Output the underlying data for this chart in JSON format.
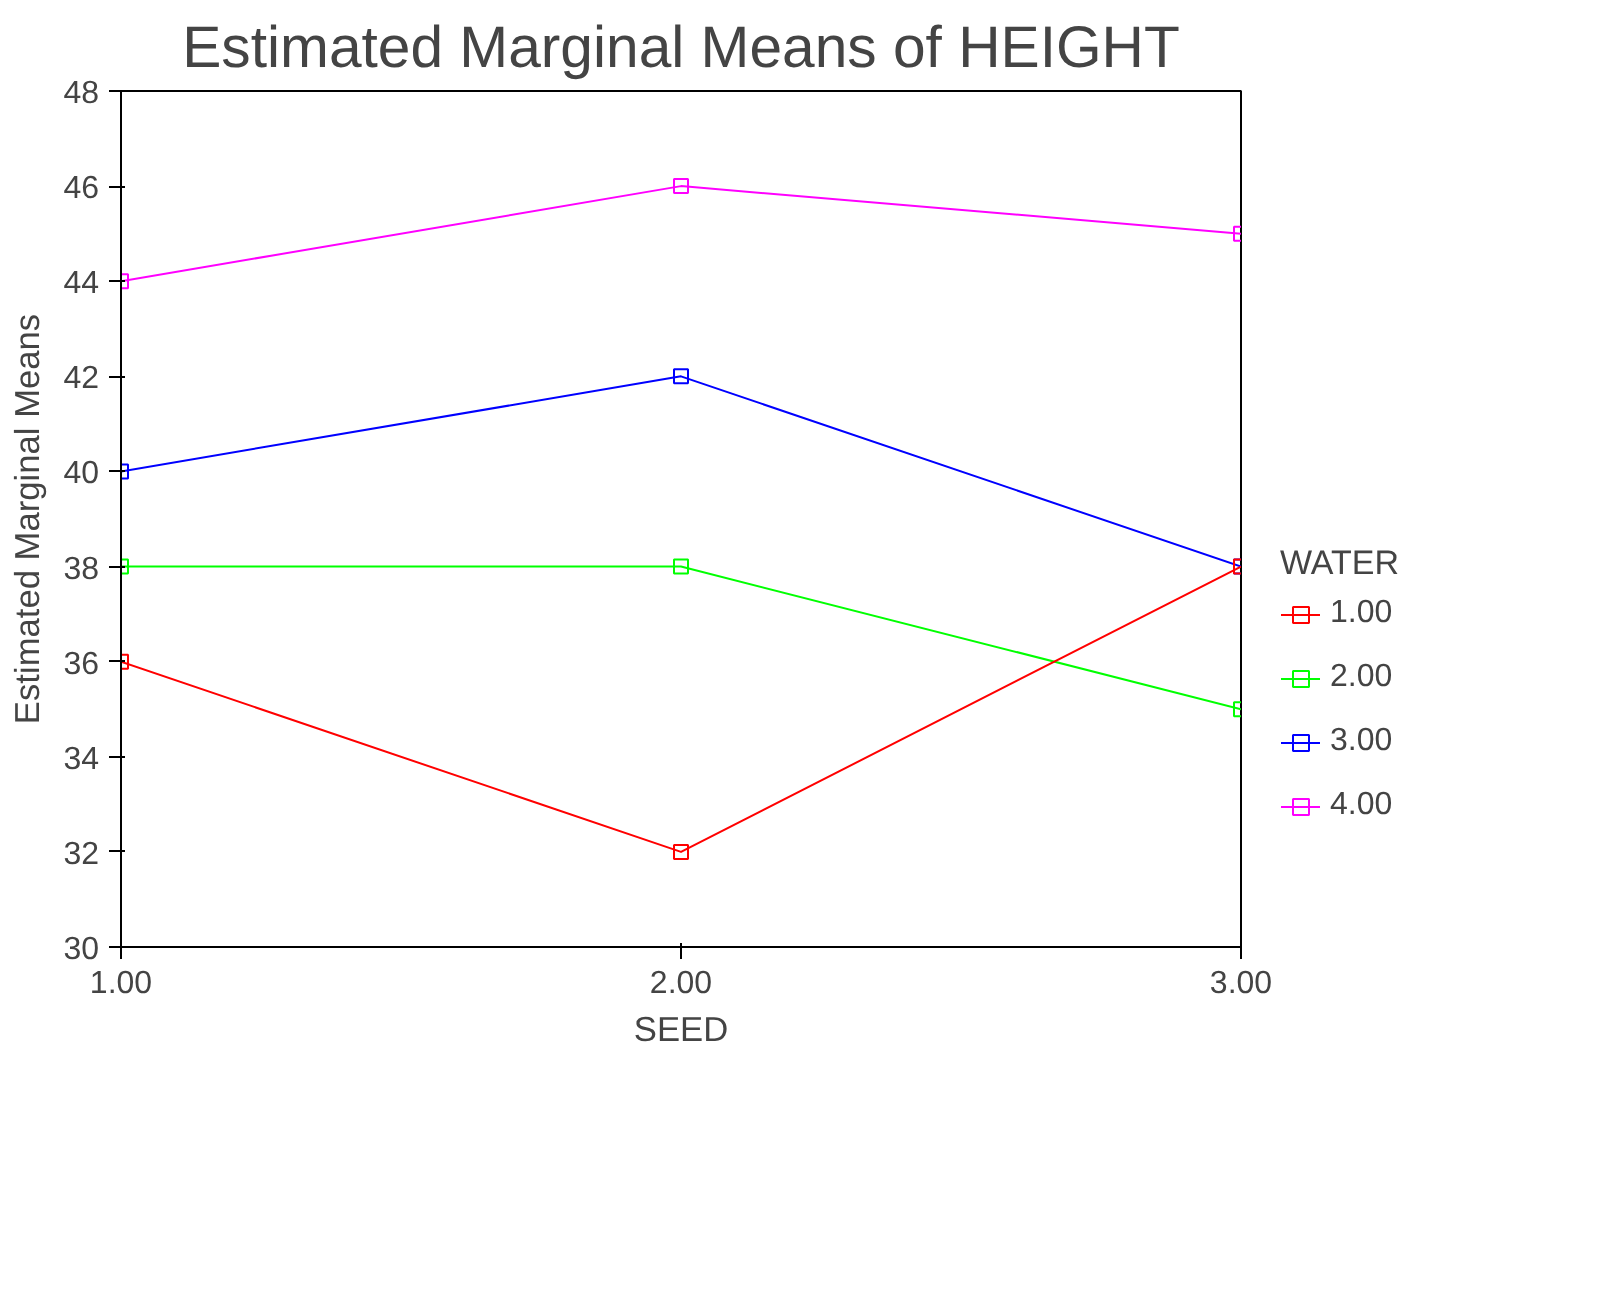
{
  "chart_data": {
    "type": "line",
    "title": "Estimated Marginal Means of HEIGHT",
    "xlabel": "SEED",
    "ylabel": "Estimated Marginal Means",
    "legend_title": "WATER",
    "x": [
      1,
      2,
      3
    ],
    "xlim": [
      1,
      3
    ],
    "xticks": [
      {
        "value": 1,
        "label": "1.00"
      },
      {
        "value": 2,
        "label": "2.00"
      },
      {
        "value": 3,
        "label": "3.00"
      }
    ],
    "ylim": [
      30,
      48
    ],
    "yticks": [
      30,
      32,
      34,
      36,
      38,
      40,
      42,
      44,
      46,
      48
    ],
    "grid": false,
    "legend": "right",
    "marker": "square",
    "line_style": "solid",
    "series": [
      {
        "name": "1.00",
        "color": "#ff0000",
        "values": [
          36,
          32,
          38
        ]
      },
      {
        "name": "2.00",
        "color": "#00ff00",
        "values": [
          38,
          38,
          35
        ]
      },
      {
        "name": "3.00",
        "color": "#0000ff",
        "values": [
          40,
          42,
          38
        ]
      },
      {
        "name": "4.00",
        "color": "#ff00ff",
        "values": [
          44,
          46,
          45
        ]
      }
    ]
  }
}
